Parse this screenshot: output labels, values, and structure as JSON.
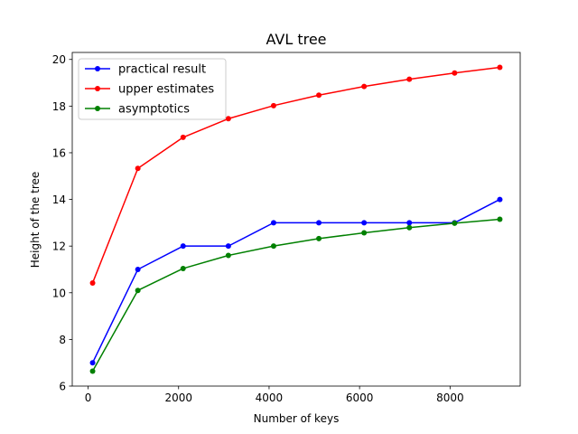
{
  "chart_data": {
    "type": "line",
    "title": "AVL tree",
    "xlabel": "Number of keys",
    "ylabel": "Height of the tree",
    "xlim": [
      -350,
      9550
    ],
    "ylim": [
      6,
      20.3
    ],
    "xticks": [
      0,
      2000,
      4000,
      6000,
      8000
    ],
    "xtick_labels": [
      "0",
      "2000",
      "4000",
      "6000",
      "8000"
    ],
    "yticks": [
      6,
      8,
      10,
      12,
      14,
      16,
      18,
      20
    ],
    "ytick_labels": [
      "6",
      "8",
      "10",
      "12",
      "14",
      "16",
      "18",
      "20"
    ],
    "grid": false,
    "legend_position": "top-left",
    "x": [
      100,
      1100,
      2100,
      3100,
      4100,
      5100,
      6100,
      7100,
      8100,
      9100
    ],
    "series": [
      {
        "name": "practical result",
        "color": "#0000ff",
        "marker": "circle",
        "values": [
          7,
          11,
          12,
          12,
          13,
          13,
          13,
          13,
          13,
          14
        ]
      },
      {
        "name": "upper estimates",
        "color": "#ff0000",
        "marker": "circle",
        "values": [
          10.42,
          15.33,
          16.66,
          17.46,
          18.02,
          18.47,
          18.84,
          19.15,
          19.42,
          19.66
        ]
      },
      {
        "name": "asymptotics",
        "color": "#008000",
        "marker": "circle",
        "values": [
          6.64,
          10.1,
          11.04,
          11.6,
          12.0,
          12.32,
          12.57,
          12.79,
          12.98,
          13.15
        ]
      }
    ]
  }
}
